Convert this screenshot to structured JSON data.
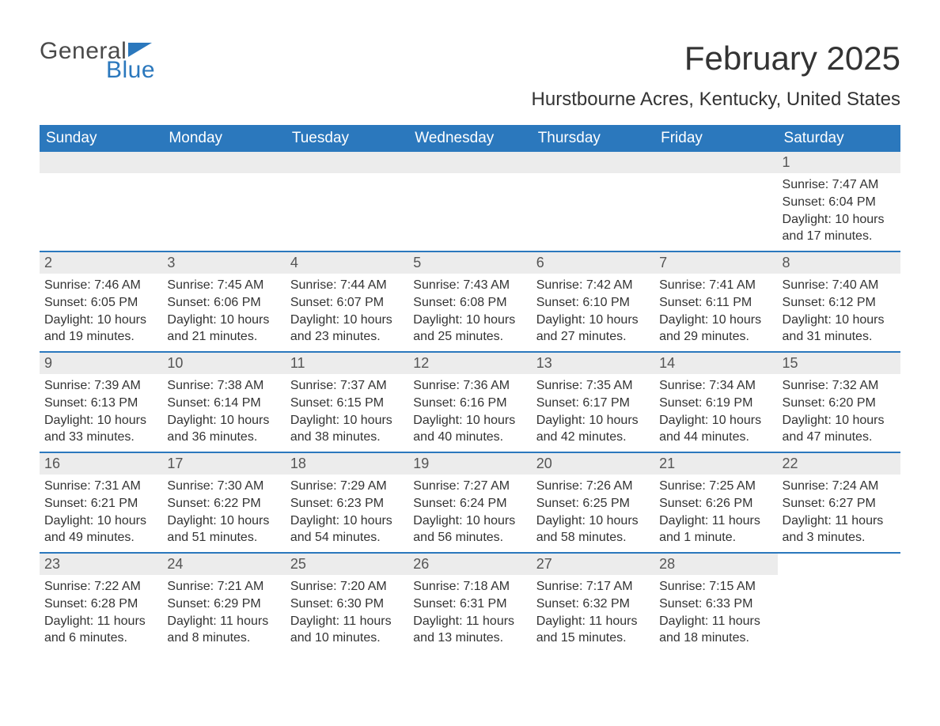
{
  "logo": {
    "text1": "General",
    "text2": "Blue",
    "icon_color": "#2b78bd"
  },
  "title": "February 2025",
  "subtitle": "Hurstbourne Acres, Kentucky, United States",
  "colors": {
    "header_bg": "#2b78bd",
    "header_text": "#ffffff",
    "daynum_bg": "#ececec",
    "daynum_text": "#555555",
    "body_text": "#333333",
    "page_bg": "#ffffff"
  },
  "weekdays": [
    "Sunday",
    "Monday",
    "Tuesday",
    "Wednesday",
    "Thursday",
    "Friday",
    "Saturday"
  ],
  "weeks": [
    [
      null,
      null,
      null,
      null,
      null,
      null,
      {
        "n": "1",
        "sunrise": "Sunrise: 7:47 AM",
        "sunset": "Sunset: 6:04 PM",
        "daylight": "Daylight: 10 hours and 17 minutes."
      }
    ],
    [
      {
        "n": "2",
        "sunrise": "Sunrise: 7:46 AM",
        "sunset": "Sunset: 6:05 PM",
        "daylight": "Daylight: 10 hours and 19 minutes."
      },
      {
        "n": "3",
        "sunrise": "Sunrise: 7:45 AM",
        "sunset": "Sunset: 6:06 PM",
        "daylight": "Daylight: 10 hours and 21 minutes."
      },
      {
        "n": "4",
        "sunrise": "Sunrise: 7:44 AM",
        "sunset": "Sunset: 6:07 PM",
        "daylight": "Daylight: 10 hours and 23 minutes."
      },
      {
        "n": "5",
        "sunrise": "Sunrise: 7:43 AM",
        "sunset": "Sunset: 6:08 PM",
        "daylight": "Daylight: 10 hours and 25 minutes."
      },
      {
        "n": "6",
        "sunrise": "Sunrise: 7:42 AM",
        "sunset": "Sunset: 6:10 PM",
        "daylight": "Daylight: 10 hours and 27 minutes."
      },
      {
        "n": "7",
        "sunrise": "Sunrise: 7:41 AM",
        "sunset": "Sunset: 6:11 PM",
        "daylight": "Daylight: 10 hours and 29 minutes."
      },
      {
        "n": "8",
        "sunrise": "Sunrise: 7:40 AM",
        "sunset": "Sunset: 6:12 PM",
        "daylight": "Daylight: 10 hours and 31 minutes."
      }
    ],
    [
      {
        "n": "9",
        "sunrise": "Sunrise: 7:39 AM",
        "sunset": "Sunset: 6:13 PM",
        "daylight": "Daylight: 10 hours and 33 minutes."
      },
      {
        "n": "10",
        "sunrise": "Sunrise: 7:38 AM",
        "sunset": "Sunset: 6:14 PM",
        "daylight": "Daylight: 10 hours and 36 minutes."
      },
      {
        "n": "11",
        "sunrise": "Sunrise: 7:37 AM",
        "sunset": "Sunset: 6:15 PM",
        "daylight": "Daylight: 10 hours and 38 minutes."
      },
      {
        "n": "12",
        "sunrise": "Sunrise: 7:36 AM",
        "sunset": "Sunset: 6:16 PM",
        "daylight": "Daylight: 10 hours and 40 minutes."
      },
      {
        "n": "13",
        "sunrise": "Sunrise: 7:35 AM",
        "sunset": "Sunset: 6:17 PM",
        "daylight": "Daylight: 10 hours and 42 minutes."
      },
      {
        "n": "14",
        "sunrise": "Sunrise: 7:34 AM",
        "sunset": "Sunset: 6:19 PM",
        "daylight": "Daylight: 10 hours and 44 minutes."
      },
      {
        "n": "15",
        "sunrise": "Sunrise: 7:32 AM",
        "sunset": "Sunset: 6:20 PM",
        "daylight": "Daylight: 10 hours and 47 minutes."
      }
    ],
    [
      {
        "n": "16",
        "sunrise": "Sunrise: 7:31 AM",
        "sunset": "Sunset: 6:21 PM",
        "daylight": "Daylight: 10 hours and 49 minutes."
      },
      {
        "n": "17",
        "sunrise": "Sunrise: 7:30 AM",
        "sunset": "Sunset: 6:22 PM",
        "daylight": "Daylight: 10 hours and 51 minutes."
      },
      {
        "n": "18",
        "sunrise": "Sunrise: 7:29 AM",
        "sunset": "Sunset: 6:23 PM",
        "daylight": "Daylight: 10 hours and 54 minutes."
      },
      {
        "n": "19",
        "sunrise": "Sunrise: 7:27 AM",
        "sunset": "Sunset: 6:24 PM",
        "daylight": "Daylight: 10 hours and 56 minutes."
      },
      {
        "n": "20",
        "sunrise": "Sunrise: 7:26 AM",
        "sunset": "Sunset: 6:25 PM",
        "daylight": "Daylight: 10 hours and 58 minutes."
      },
      {
        "n": "21",
        "sunrise": "Sunrise: 7:25 AM",
        "sunset": "Sunset: 6:26 PM",
        "daylight": "Daylight: 11 hours and 1 minute."
      },
      {
        "n": "22",
        "sunrise": "Sunrise: 7:24 AM",
        "sunset": "Sunset: 6:27 PM",
        "daylight": "Daylight: 11 hours and 3 minutes."
      }
    ],
    [
      {
        "n": "23",
        "sunrise": "Sunrise: 7:22 AM",
        "sunset": "Sunset: 6:28 PM",
        "daylight": "Daylight: 11 hours and 6 minutes."
      },
      {
        "n": "24",
        "sunrise": "Sunrise: 7:21 AM",
        "sunset": "Sunset: 6:29 PM",
        "daylight": "Daylight: 11 hours and 8 minutes."
      },
      {
        "n": "25",
        "sunrise": "Sunrise: 7:20 AM",
        "sunset": "Sunset: 6:30 PM",
        "daylight": "Daylight: 11 hours and 10 minutes."
      },
      {
        "n": "26",
        "sunrise": "Sunrise: 7:18 AM",
        "sunset": "Sunset: 6:31 PM",
        "daylight": "Daylight: 11 hours and 13 minutes."
      },
      {
        "n": "27",
        "sunrise": "Sunrise: 7:17 AM",
        "sunset": "Sunset: 6:32 PM",
        "daylight": "Daylight: 11 hours and 15 minutes."
      },
      {
        "n": "28",
        "sunrise": "Sunrise: 7:15 AM",
        "sunset": "Sunset: 6:33 PM",
        "daylight": "Daylight: 11 hours and 18 minutes."
      },
      null
    ]
  ]
}
